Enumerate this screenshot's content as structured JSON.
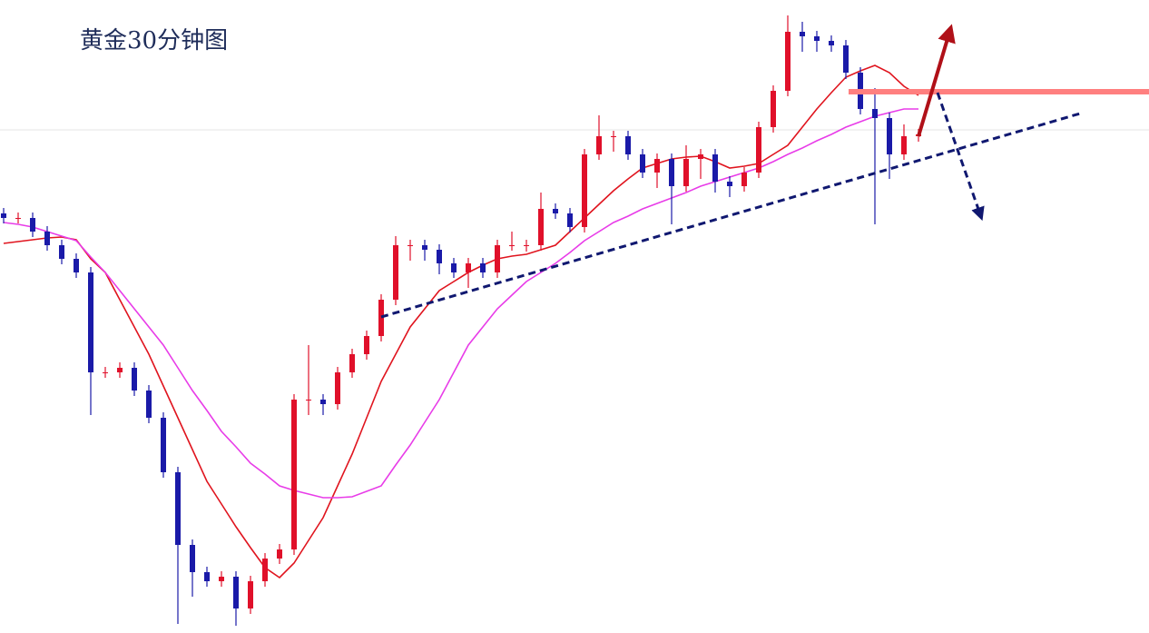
{
  "chart_data": {
    "type": "candlestick",
    "title": "黄金30分钟图",
    "ylim": [
      0,
      697
    ],
    "up_color": "#e0102a",
    "down_color": "#1a1aa8",
    "open": [
      462,
      457,
      457,
      442,
      427,
      412,
      397,
      287,
      287,
      292,
      267,
      237,
      177,
      97,
      67,
      57,
      62,
      27,
      57,
      82,
      92,
      257,
      257,
      252,
      287,
      307,
      327,
      367,
      427,
      427,
      422,
      407,
      397,
      407,
      397,
      427,
      427,
      427,
      467,
      462,
      447,
      527,
      547,
      547,
      527,
      507,
      522,
      492,
      522,
      527,
      497,
      492,
      507,
      557,
      597,
      662,
      657,
      652,
      647,
      617,
      577,
      567,
      527,
      547
    ],
    "high": [
      468,
      463,
      463,
      448,
      433,
      418,
      403,
      293,
      298,
      298,
      273,
      243,
      183,
      103,
      73,
      68,
      68,
      63,
      88,
      98,
      263,
      317,
      263,
      293,
      313,
      333,
      373,
      437,
      433,
      433,
      428,
      413,
      413,
      413,
      433,
      442,
      433,
      485,
      473,
      468,
      533,
      570,
      553,
      553,
      533,
      528,
      528,
      537,
      533,
      533,
      503,
      513,
      563,
      603,
      680,
      673,
      663,
      658,
      653,
      623,
      600,
      573,
      560,
      555
    ],
    "low": [
      451,
      451,
      436,
      421,
      406,
      391,
      240,
      281,
      281,
      261,
      231,
      171,
      10,
      40,
      51,
      51,
      8,
      21,
      51,
      76,
      86,
      240,
      240,
      246,
      281,
      301,
      321,
      361,
      410,
      410,
      395,
      391,
      380,
      391,
      391,
      421,
      420,
      421,
      456,
      441,
      441,
      521,
      530,
      521,
      501,
      490,
      450,
      486,
      500,
      485,
      480,
      486,
      501,
      551,
      591,
      640,
      640,
      640,
      610,
      571,
      450,
      500,
      521,
      541
    ],
    "close": [
      457,
      457,
      442,
      427,
      412,
      397,
      287,
      287,
      292,
      267,
      237,
      177,
      97,
      67,
      57,
      62,
      27,
      57,
      82,
      92,
      257,
      257,
      252,
      287,
      307,
      327,
      367,
      427,
      427,
      422,
      407,
      397,
      407,
      397,
      427,
      427,
      427,
      467,
      462,
      447,
      527,
      547,
      547,
      527,
      507,
      522,
      492,
      522,
      527,
      497,
      492,
      507,
      557,
      597,
      662,
      657,
      652,
      647,
      617,
      577,
      567,
      527,
      547,
      549
    ],
    "lines": [
      {
        "color": "#e0141e",
        "values": [
          429,
          431,
          433,
          435,
          436,
          433,
          412,
          397,
          367,
          337,
          307,
          272,
          237,
          202,
          167,
          142,
          117,
          94,
          72,
          61,
          77,
          102,
          127,
          162,
          197,
          237,
          277,
          307,
          337,
          357,
          377,
          387,
          397,
          405,
          412,
          415,
          417,
          422,
          427,
          442,
          457,
          472,
          487,
          500,
          512,
          517,
          522,
          524,
          525,
          519,
          512,
          514,
          517,
          527,
          537,
          557,
          577,
          595,
          612,
          619,
          625,
          617,
          602,
          592
        ]
      },
      {
        "color": "#e83ce8",
        "values": [
          452,
          450,
          447,
          442,
          437,
          432,
          414,
          397,
          377,
          357,
          337,
          317,
          292,
          267,
          245,
          222,
          205,
          187,
          175,
          162,
          157,
          153,
          149,
          149,
          150,
          156,
          162,
          185,
          207,
          232,
          257,
          287,
          317,
          337,
          357,
          372,
          387,
          397,
          407,
          419,
          432,
          442,
          452,
          459,
          467,
          473,
          479,
          485,
          492,
          497,
          502,
          507,
          512,
          519,
          527,
          534,
          542,
          549,
          557,
          563,
          569,
          573,
          577,
          577
        ]
      }
    ]
  }
}
